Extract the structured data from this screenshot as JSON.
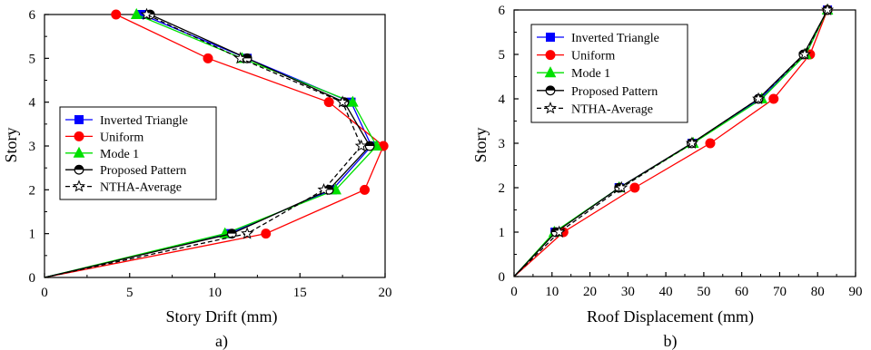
{
  "colors": {
    "inverted_triangle": "#0000ff",
    "uniform": "#ff0000",
    "mode1": "#00e000",
    "proposed": "#000000",
    "ntha": "#000000"
  },
  "chart_data": [
    {
      "type": "line",
      "panel_label": "a)",
      "xlabel": "Story Drift (mm)",
      "ylabel": "Story",
      "xlim": [
        0,
        20
      ],
      "ylim": [
        0,
        6
      ],
      "x_ticks": [
        "0",
        "5",
        "10",
        "15",
        "20"
      ],
      "y_ticks": [
        "0",
        "1",
        "2",
        "3",
        "4",
        "5",
        "6"
      ],
      "legend_position": "center-left",
      "series": [
        {
          "name": "Inverted Triangle",
          "marker": "square",
          "color": "#0000ff",
          "dash": "solid",
          "x": [
            0,
            10.8,
            16.9,
            19.2,
            18.0,
            11.9,
            5.7
          ],
          "y": [
            0,
            1,
            2,
            3,
            4,
            5,
            6
          ]
        },
        {
          "name": "Uniform",
          "marker": "circle",
          "color": "#ff0000",
          "dash": "solid",
          "x": [
            0,
            13.0,
            18.8,
            19.9,
            16.7,
            9.6,
            4.2
          ],
          "y": [
            0,
            1,
            2,
            3,
            4,
            5,
            6
          ]
        },
        {
          "name": "Mode 1",
          "marker": "triangle",
          "color": "#00e000",
          "dash": "solid",
          "x": [
            0,
            10.6,
            17.1,
            19.5,
            18.1,
            11.6,
            5.4
          ],
          "y": [
            0,
            1,
            2,
            3,
            4,
            5,
            6
          ]
        },
        {
          "name": "Proposed Pattern",
          "marker": "halfcircle",
          "color": "#000000",
          "dash": "solid",
          "x": [
            0,
            11.0,
            16.7,
            19.1,
            17.6,
            11.9,
            6.2
          ],
          "y": [
            0,
            1,
            2,
            3,
            4,
            5,
            6
          ]
        },
        {
          "name": "NTHA-Average",
          "marker": "star",
          "color": "#000000",
          "dash": "dashed",
          "x": [
            0,
            11.9,
            16.4,
            18.6,
            17.5,
            11.5,
            6.0
          ],
          "y": [
            0,
            1,
            2,
            3,
            4,
            5,
            6
          ]
        }
      ]
    },
    {
      "type": "line",
      "panel_label": "b)",
      "xlabel": "Roof Displacement (mm)",
      "ylabel": "Story",
      "xlim": [
        0,
        90
      ],
      "ylim": [
        0,
        6
      ],
      "x_ticks": [
        "0",
        "10",
        "20",
        "30",
        "40",
        "50",
        "60",
        "70",
        "80",
        "90"
      ],
      "y_ticks": [
        "0",
        "1",
        "2",
        "3",
        "4",
        "5",
        "6"
      ],
      "legend_position": "top-left",
      "series": [
        {
          "name": "Inverted Triangle",
          "marker": "square",
          "color": "#0000ff",
          "dash": "solid",
          "x": [
            0,
            10.8,
            27.7,
            46.9,
            64.9,
            76.9,
            82.6
          ],
          "y": [
            0,
            1,
            2,
            3,
            4,
            5,
            6
          ]
        },
        {
          "name": "Uniform",
          "marker": "circle",
          "color": "#ff0000",
          "dash": "solid",
          "x": [
            0,
            13.0,
            31.8,
            51.7,
            68.4,
            78.0,
            82.6
          ],
          "y": [
            0,
            1,
            2,
            3,
            4,
            5,
            6
          ]
        },
        {
          "name": "Mode 1",
          "marker": "triangle",
          "color": "#00e000",
          "dash": "solid",
          "x": [
            0,
            10.6,
            27.7,
            47.2,
            65.3,
            76.9,
            82.6
          ],
          "y": [
            0,
            1,
            2,
            3,
            4,
            5,
            6
          ]
        },
        {
          "name": "Proposed Pattern",
          "marker": "halfcircle",
          "color": "#000000",
          "dash": "solid",
          "x": [
            0,
            11.0,
            27.7,
            46.8,
            64.4,
            76.3,
            82.6
          ],
          "y": [
            0,
            1,
            2,
            3,
            4,
            5,
            6
          ]
        },
        {
          "name": "NTHA-Average",
          "marker": "star",
          "color": "#000000",
          "dash": "dashed",
          "x": [
            0,
            11.9,
            28.3,
            46.9,
            64.4,
            76.6,
            82.6
          ],
          "y": [
            0,
            1,
            2,
            3,
            4,
            5,
            6
          ]
        }
      ]
    }
  ]
}
